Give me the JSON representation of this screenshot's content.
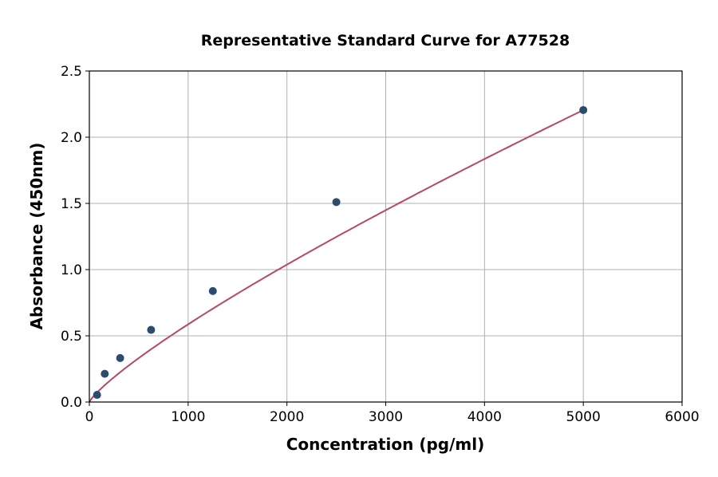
{
  "chart_data": {
    "type": "scatter",
    "title": "Representative Standard Curve for A77528",
    "xlabel": "Concentration (pg/ml)",
    "ylabel": "Absorbance (450nm)",
    "xlim": [
      0,
      6000
    ],
    "ylim": [
      0,
      2.5
    ],
    "xticks": [
      0,
      1000,
      2000,
      3000,
      4000,
      5000,
      6000
    ],
    "yticks": [
      "0.0",
      "0.5",
      "1.0",
      "1.5",
      "2.0",
      "2.5"
    ],
    "grid": true,
    "points": [
      {
        "x": 78,
        "y": 0.054
      },
      {
        "x": 156,
        "y": 0.213
      },
      {
        "x": 312,
        "y": 0.332
      },
      {
        "x": 625,
        "y": 0.545
      },
      {
        "x": 1250,
        "y": 0.838
      },
      {
        "x": 2500,
        "y": 1.51
      },
      {
        "x": 5000,
        "y": 2.205
      }
    ],
    "fit_curve": {
      "type": "power",
      "color": "#b5486b"
    },
    "point_color": "#2d4b6e"
  }
}
